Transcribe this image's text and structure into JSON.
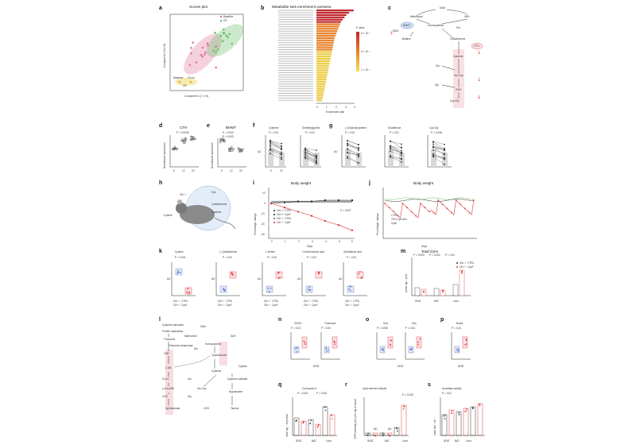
{
  "panels": {
    "a": {
      "label": "a",
      "title": "Scores plot",
      "xlabel": "Component 1 (7.4 %)",
      "ylabel": "Component 2 (5.1 %)",
      "legend": [
        "Baseline",
        "CR"
      ],
      "legend_colors": [
        "#e07a9a",
        "#6cbf6c"
      ],
      "annot": [
        "Baseline",
        "12 mo",
        "CR"
      ]
    },
    "b": {
      "label": "b",
      "title": "Metabolite sets enrichment overview",
      "xlabel": "Enrichment ratio",
      "ticks": [
        "0",
        "1",
        "2",
        "3",
        "4"
      ],
      "legend_title": "P value",
      "legend_ticks": [
        "5 × 10⁻¹",
        "5 × 10⁻¹",
        "1 × 10⁻¹"
      ],
      "chart_data": {
        "type": "bar",
        "values": [
          4.1,
          3.6,
          3.3,
          3.1,
          2.9,
          2.7,
          2.6,
          2.5,
          2.4,
          2.3,
          2.2,
          2.1,
          2.0,
          1.95,
          1.9,
          1.85,
          1.8,
          1.75,
          1.7,
          1.65,
          1.6,
          1.55,
          1.5,
          1.45,
          1.4,
          1.35,
          1.3,
          1.25,
          1.2,
          1.15,
          1.1,
          1.05,
          1.0,
          0.95,
          0.9,
          0.85,
          0.8,
          0.75,
          0.7,
          0.6
        ]
      }
    },
    "c": {
      "label": "c",
      "nodes": [
        "SAM",
        "SAH",
        "Methionine",
        "BHMT",
        "DMG",
        "Ser",
        "Homocysteine",
        "Betaine",
        "Cystathionine",
        "CTH",
        "Cysteine",
        "Glu",
        "Glu-Cys",
        "Gly",
        "GSH",
        "Cys-Gly"
      ]
    },
    "d": {
      "label": "d",
      "title": "CTH",
      "pval": "P = 0.0039",
      "ylabel": "Normalized expression",
      "xticks": [
        "6",
        "12",
        "24"
      ],
      "chart_data": {
        "type": "scatter",
        "categories": [
          "6",
          "12",
          "24"
        ],
        "means": [
          4.0,
          6.5,
          7.0
        ]
      }
    },
    "e": {
      "label": "e",
      "title": "BHMT",
      "pvals": [
        "P = 0.003",
        "P = 0.003"
      ],
      "ylabel": "Normalized expression",
      "xticks": [
        "6",
        "12",
        "24"
      ],
      "chart_data": {
        "type": "scatter",
        "categories": [
          "6",
          "12",
          "24"
        ],
        "means": [
          6.5,
          4.0,
          3.8
        ]
      }
    },
    "f": {
      "label": "f",
      "titles": [
        "Cysteine",
        "Dimethylglycine"
      ],
      "pvals": [
        "P = 0.03",
        "P = 0.01"
      ],
      "ylabel": "AU",
      "xticks": [
        "6",
        "12"
      ]
    },
    "g": {
      "label": "g",
      "titles": [
        "γ-Glutamylcysteine",
        "Glutathione",
        "Cys-Gly"
      ],
      "pvals": [
        "P = 0.03",
        "P = 0.01",
        "P = 0.008"
      ],
      "ylabel": "AU",
      "xticks": [
        "6",
        "12"
      ]
    },
    "h": {
      "label": "h",
      "labels": [
        "Cth⁻/⁻",
        "Cystine",
        "Cystathionine",
        "Cysteine",
        "Cys"
      ]
    },
    "i": {
      "label": "i",
      "title": "Body weight",
      "xlabel": "Days",
      "ylabel": "Percentage change",
      "pval": "P = 0.007",
      "legend": [
        "Cth⁺/⁺ CTRL",
        "Cth⁺/⁺ CysF",
        "Cth⁻/⁻ CTRL",
        "Cth⁻/⁻ CysF"
      ],
      "xticks": [
        "0",
        "1",
        "2",
        "3",
        "4",
        "5",
        "6"
      ],
      "yticks": [
        "10",
        "0",
        "-10",
        "-20",
        "-30"
      ],
      "chart_data": {
        "type": "line",
        "x": [
          0,
          1,
          2,
          3,
          4,
          5,
          6
        ],
        "series": [
          {
            "name": "Cth⁺/⁺ CTRL",
            "values": [
              0,
              1,
              2,
              2,
              3,
              3,
              3
            ]
          },
          {
            "name": "Cth⁻/⁻ CysF",
            "values": [
              0,
              -4,
              -8,
              -12,
              -17,
              -21,
              -26
            ]
          }
        ]
      }
    },
    "j": {
      "label": "j",
      "title": "Body weight",
      "xlabel": "Days",
      "ylabel": "Percentage change",
      "legend": [
        "CTRL",
        "70% Cysf diet",
        "CysF"
      ]
    },
    "k": {
      "label": "k",
      "titles": [
        "Cystine",
        "L-Cystathionine",
        "L-Serine",
        "2-Aminobutyric acid",
        "Ophthalmic acid"
      ],
      "pvals": [
        "P < 0.001",
        "P = 0.03",
        "P = 0.03",
        "P = 0.03",
        "P = 0.03"
      ],
      "ylabel": "AU",
      "xticks": [
        "Cth⁻/⁻ CTRL",
        "Cth⁻/⁻ CysF"
      ]
    },
    "m": {
      "label": "m",
      "title": "Total GSH",
      "ylabel": "(nmol mg⁻¹ prot)",
      "xticks": [
        "SFAT",
        "BAT",
        "Liver"
      ],
      "pvals": [
        "P = 0.003",
        "P = 0.002",
        "P = 0.02"
      ],
      "legend": [
        "Cth⁻/⁻ CTRL",
        "Cth⁻/⁻ CysF"
      ]
    },
    "l": {
      "label": "l",
      "nodes": [
        "Cysteine starvation",
        "Protein catabolism",
        "Threonine",
        "Threonine deaminase",
        "2OB",
        "2-AB",
        "GCLC",
        "γ-Glu-2AB",
        "GSS",
        "Ophthalmate",
        "SAM",
        "SAH",
        "Methionine",
        "Homocysteine",
        "Ser",
        "Cystathionine",
        "Cysteine",
        "Cystine",
        "Glu",
        "Glu-Cys",
        "Gly",
        "GSH",
        "Cysteine sulfinate",
        "Hypotaurine",
        "Taurine"
      ]
    },
    "n": {
      "label": "n",
      "titles": [
        "GSSG",
        "Threonine"
      ],
      "pvals": [
        "P = 0.03",
        "P = 0.03"
      ],
      "ylabel": "AU",
      "xlabel": "SFAT"
    },
    "o": {
      "label": "o",
      "titles": [
        "Gclc",
        "Gss"
      ],
      "pvals": [
        "P = 0.008",
        "P = 0.04"
      ],
      "ylabel": "FPKM",
      "xlabel": "SFAT"
    },
    "p": {
      "label": "p",
      "title": "Bola3",
      "pval": "P = 0.04",
      "ylabel": "FPKM",
      "xlabel": "SFAT"
    },
    "q": {
      "label": "q",
      "title": "Coenzyme A",
      "ylabel": "nmol mg⁻¹ of protein",
      "xticks": [
        "SFAT",
        "BAT",
        "Liver"
      ],
      "pvals": [
        "P = 0.001",
        "P = 0.001"
      ]
    },
    "r": {
      "label": "r",
      "title": "Lipid-derived radicals",
      "ylabel": "EPR intensity (AU) per mg of tissue",
      "xticks": [
        "SFAT",
        "BAT",
        "Liver"
      ],
      "annot": [
        "ND",
        "ND"
      ],
      "pval": "P = 0.028"
    },
    "s": {
      "label": "s",
      "title": "Aconitase activity",
      "ylabel": "nmol min⁻¹ ml⁻¹",
      "xticks": [
        "SFAT",
        "BAT",
        "Liver"
      ],
      "pval": "P = 0.01"
    }
  },
  "colors": {
    "pink": "#e07a9a",
    "green": "#6cbf6c",
    "red": "#d83a3a",
    "orange": "#e6a53a",
    "yellow": "#e8d44d",
    "blue": "#5a78c8",
    "grey": "#9a9a9a"
  }
}
